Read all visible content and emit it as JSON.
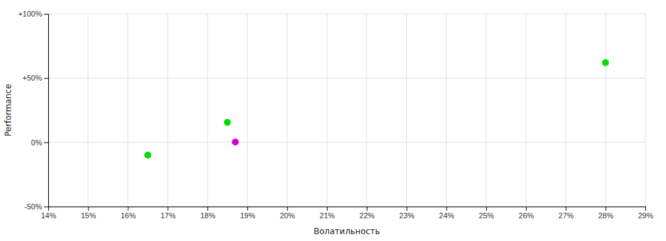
{
  "chart_data": {
    "type": "scatter",
    "xlabel": "Волатильность",
    "ylabel": "Performance",
    "x": [
      0.165,
      0.185,
      0.187,
      0.28
    ],
    "values": [
      -0.1,
      0.155,
      0.002,
      0.62
    ],
    "colors": [
      "#00dd00",
      "#00dd00",
      "#cc00cc",
      "#00dd00"
    ],
    "xlim": [
      0.14,
      0.29
    ],
    "ylim": [
      -0.5,
      1.0
    ],
    "xticks": [
      {
        "value": 0.14,
        "label": "14%"
      },
      {
        "value": 0.15,
        "label": "15%"
      },
      {
        "value": 0.16,
        "label": "16%"
      },
      {
        "value": 0.17,
        "label": "17%"
      },
      {
        "value": 0.18,
        "label": "18%"
      },
      {
        "value": 0.19,
        "label": "19%"
      },
      {
        "value": 0.2,
        "label": "20%"
      },
      {
        "value": 0.21,
        "label": "21%"
      },
      {
        "value": 0.22,
        "label": "22%"
      },
      {
        "value": 0.23,
        "label": "23%"
      },
      {
        "value": 0.24,
        "label": "24%"
      },
      {
        "value": 0.25,
        "label": "25%"
      },
      {
        "value": 0.26,
        "label": "26%"
      },
      {
        "value": 0.27,
        "label": "27%"
      },
      {
        "value": 0.28,
        "label": "28%"
      },
      {
        "value": 0.29,
        "label": "29%"
      }
    ],
    "yticks": [
      {
        "value": -0.5,
        "label": "-50%"
      },
      {
        "value": 0.0,
        "label": "0%"
      },
      {
        "value": 0.5,
        "label": "+50%"
      },
      {
        "value": 1.0,
        "label": "+100%"
      }
    ],
    "grid": true
  }
}
